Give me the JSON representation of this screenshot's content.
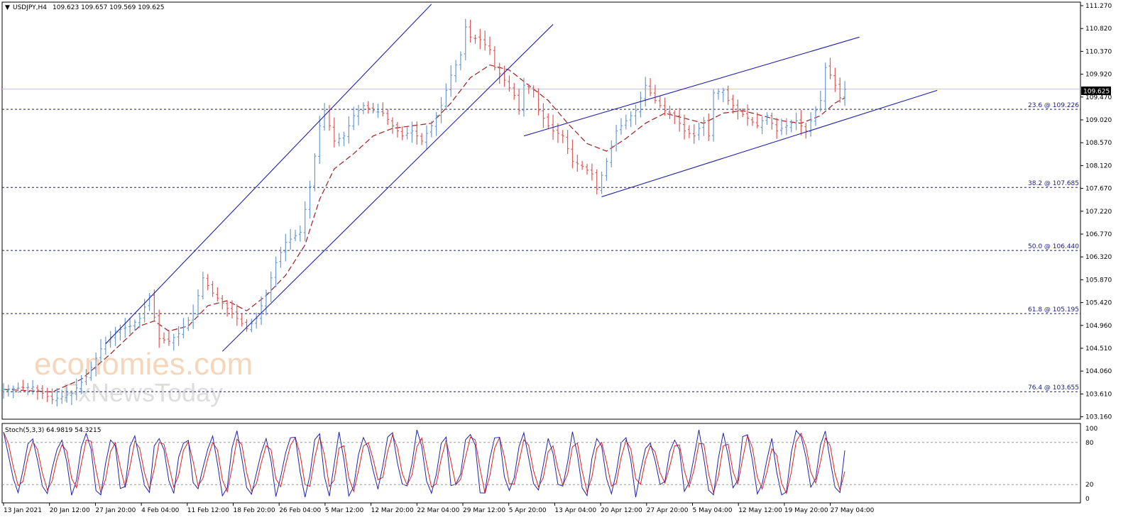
{
  "header": {
    "symbol": "USDJPY,H4",
    "ohlc": "109.623 109.657 109.569 109.625",
    "arrow": "▼"
  },
  "current_price": "109.625",
  "watermark": {
    "brand": "economies.com",
    "sub": "FxNewsToday"
  },
  "indicator": {
    "label": "Stoch(5,3,3) 64.9819 54.3215",
    "levels": [
      "100",
      "80",
      "20",
      "0"
    ]
  },
  "colors": {
    "bull": "#6a9bd1",
    "bear": "#e05a5a",
    "ma": "#a01e1e",
    "channel": "#1f22b0",
    "fib": "#1a1a7a",
    "current": "#9ed3e4",
    "stoch_main": "#1f22b0",
    "stoch_signal": "#e02020"
  },
  "chart_data": {
    "type": "candlestick",
    "price_ticks": [
      "111.270",
      "110.820",
      "110.370",
      "109.920",
      "109.470",
      "109.020",
      "108.570",
      "108.120",
      "107.670",
      "107.220",
      "106.770",
      "106.320",
      "105.870",
      "105.420",
      "104.960",
      "104.510",
      "104.060",
      "103.610",
      "103.160"
    ],
    "time_labels": [
      "13 Jan 2021",
      "20 Jan 12:00",
      "27 Jan 20:00",
      "4 Feb 04:00",
      "11 Feb 12:00",
      "18 Feb 20:00",
      "26 Feb 04:00",
      "5 Mar 12:00",
      "12 Mar 20:00",
      "22 Mar 04:00",
      "29 Mar 12:00",
      "5 Apr 20:00",
      "13 Apr 04:00",
      "20 Apr 12:00",
      "27 Apr 20:00",
      "5 May 04:00",
      "12 May 12:00",
      "19 May 20:00",
      "27 May 04:00"
    ],
    "fib_levels": [
      {
        "label": "23.6 @ 109.226",
        "price": 109.226
      },
      {
        "label": "38.2 @ 107.685",
        "price": 107.685
      },
      {
        "label": "50.0 @ 106.440",
        "price": 106.44
      },
      {
        "label": "61.8 @ 105.195",
        "price": 105.195
      },
      {
        "label": "76.4 @ 103.655",
        "price": 103.655
      }
    ],
    "close_path": [
      [
        0,
        103.7
      ],
      [
        6,
        103.75
      ],
      [
        10,
        103.5
      ],
      [
        14,
        103.62
      ],
      [
        17,
        103.95
      ],
      [
        20,
        104.5
      ],
      [
        23,
        104.85
      ],
      [
        26,
        104.95
      ],
      [
        28,
        105.1
      ],
      [
        30,
        105.55
      ],
      [
        32,
        104.7
      ],
      [
        34,
        104.65
      ],
      [
        36,
        104.8
      ],
      [
        39,
        105.2
      ],
      [
        41,
        105.9
      ],
      [
        43,
        105.6
      ],
      [
        46,
        105.3
      ],
      [
        48,
        105.1
      ],
      [
        50,
        104.9
      ],
      [
        52,
        105.1
      ],
      [
        54,
        105.6
      ],
      [
        56,
        106.2
      ],
      [
        58,
        106.6
      ],
      [
        61,
        106.8
      ],
      [
        63,
        107.7
      ],
      [
        65,
        108.9
      ],
      [
        66,
        109.2
      ],
      [
        68,
        108.6
      ],
      [
        70,
        108.7
      ],
      [
        72,
        109.1
      ],
      [
        74,
        109.3
      ],
      [
        76,
        109.2
      ],
      [
        78,
        109.15
      ],
      [
        80,
        108.9
      ],
      [
        82,
        108.7
      ],
      [
        84,
        108.8
      ],
      [
        86,
        108.6
      ],
      [
        88,
        108.9
      ],
      [
        90,
        109.3
      ],
      [
        92,
        109.9
      ],
      [
        94,
        110.3
      ],
      [
        95,
        110.85
      ],
      [
        96,
        110.65
      ],
      [
        98,
        110.6
      ],
      [
        100,
        110.4
      ],
      [
        101,
        110.05
      ],
      [
        103,
        109.8
      ],
      [
        105,
        109.5
      ],
      [
        106,
        109.2
      ],
      [
        107,
        109.7
      ],
      [
        109,
        109.6
      ],
      [
        110,
        109.2
      ],
      [
        112,
        108.9
      ],
      [
        113,
        108.8
      ],
      [
        115,
        108.7
      ],
      [
        117,
        108.2
      ],
      [
        119,
        108.1
      ],
      [
        121,
        107.95
      ],
      [
        122,
        107.65
      ],
      [
        124,
        108.2
      ],
      [
        126,
        108.8
      ],
      [
        128,
        109.0
      ],
      [
        130,
        109.2
      ],
      [
        132,
        109.7
      ],
      [
        134,
        109.4
      ],
      [
        136,
        109.2
      ],
      [
        138,
        109.1
      ],
      [
        140,
        108.8
      ],
      [
        142,
        108.7
      ],
      [
        144,
        109.0
      ],
      [
        145,
        108.7
      ],
      [
        146,
        109.55
      ],
      [
        148,
        109.6
      ],
      [
        149,
        109.4
      ],
      [
        151,
        109.2
      ],
      [
        153,
        109.05
      ],
      [
        155,
        108.9
      ],
      [
        157,
        109.1
      ],
      [
        159,
        108.8
      ],
      [
        161,
        108.9
      ],
      [
        163,
        109.0
      ],
      [
        165,
        108.8
      ],
      [
        167,
        109.2
      ],
      [
        168,
        109.4
      ],
      [
        169,
        110.05
      ],
      [
        170,
        109.9
      ],
      [
        171,
        109.7
      ],
      [
        172,
        109.45
      ],
      [
        173,
        109.62
      ]
    ],
    "ma_path": [
      [
        0,
        103.7
      ],
      [
        10,
        103.65
      ],
      [
        16,
        103.9
      ],
      [
        22,
        104.4
      ],
      [
        28,
        104.95
      ],
      [
        31,
        105.05
      ],
      [
        34,
        104.85
      ],
      [
        38,
        104.95
      ],
      [
        42,
        105.35
      ],
      [
        46,
        105.45
      ],
      [
        50,
        105.25
      ],
      [
        54,
        105.55
      ],
      [
        58,
        105.95
      ],
      [
        62,
        106.55
      ],
      [
        65,
        107.45
      ],
      [
        68,
        108.05
      ],
      [
        72,
        108.35
      ],
      [
        76,
        108.7
      ],
      [
        80,
        108.85
      ],
      [
        84,
        108.9
      ],
      [
        88,
        108.95
      ],
      [
        92,
        109.35
      ],
      [
        96,
        109.85
      ],
      [
        100,
        110.1
      ],
      [
        104,
        110.0
      ],
      [
        108,
        109.7
      ],
      [
        112,
        109.4
      ],
      [
        116,
        108.95
      ],
      [
        120,
        108.55
      ],
      [
        124,
        108.4
      ],
      [
        128,
        108.65
      ],
      [
        132,
        108.95
      ],
      [
        136,
        109.15
      ],
      [
        140,
        109.05
      ],
      [
        144,
        108.95
      ],
      [
        148,
        109.15
      ],
      [
        152,
        109.2
      ],
      [
        156,
        109.1
      ],
      [
        160,
        109.0
      ],
      [
        164,
        108.95
      ],
      [
        168,
        109.1
      ],
      [
        171,
        109.35
      ],
      [
        173,
        109.45
      ]
    ],
    "channels": [
      {
        "name": "upper-1",
        "p1": [
          21,
          104.6
        ],
        "p2": [
          88,
          111.3
        ]
      },
      {
        "name": "lower-1",
        "p1": [
          45,
          104.45
        ],
        "p2": [
          113,
          110.9
        ]
      },
      {
        "name": "upper-2",
        "p1": [
          107,
          108.7
        ],
        "p2": [
          176,
          110.65
        ]
      },
      {
        "name": "lower-2",
        "p1": [
          123,
          107.5
        ],
        "p2": [
          192,
          109.6
        ]
      }
    ],
    "stoch_seed": 7,
    "n_bars": 174,
    "ylim": [
      103.16,
      111.27
    ]
  }
}
